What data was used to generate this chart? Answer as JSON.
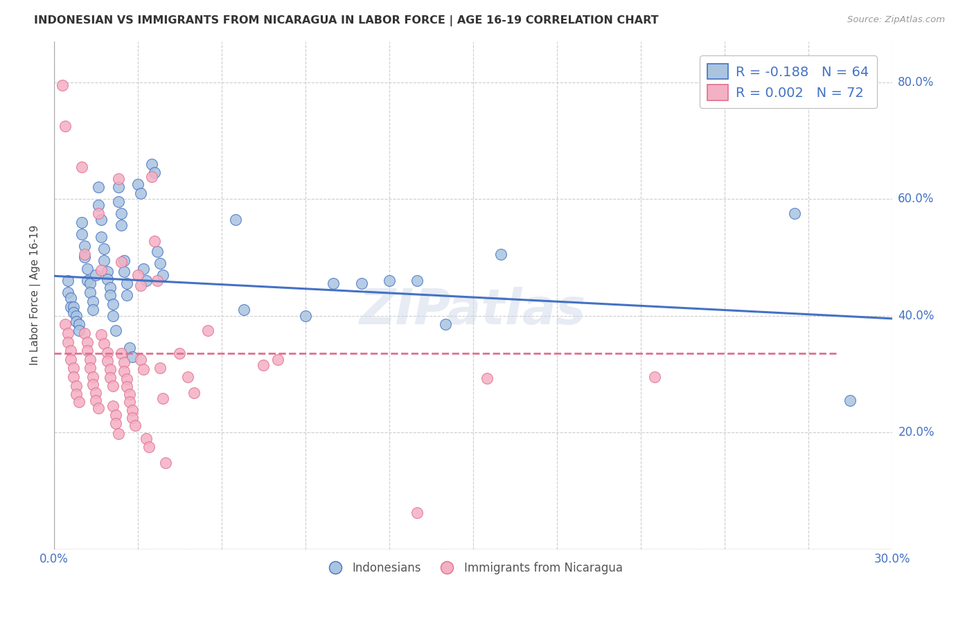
{
  "title": "INDONESIAN VS IMMIGRANTS FROM NICARAGUA IN LABOR FORCE | AGE 16-19 CORRELATION CHART",
  "source": "Source: ZipAtlas.com",
  "ylabel": "In Labor Force | Age 16-19",
  "xlim": [
    0.0,
    0.3
  ],
  "ylim": [
    0.0,
    0.87
  ],
  "xticks": [
    0.0,
    0.03,
    0.06,
    0.09,
    0.12,
    0.15,
    0.18,
    0.21,
    0.24,
    0.27,
    0.3
  ],
  "yticks": [
    0.0,
    0.2,
    0.4,
    0.6,
    0.8
  ],
  "blue_color": "#aac4e0",
  "pink_color": "#f4b0c4",
  "blue_edge_color": "#4472c4",
  "pink_edge_color": "#e07090",
  "blue_trend_x0": 0.0,
  "blue_trend_y0": 0.468,
  "blue_trend_x1": 0.3,
  "blue_trend_y1": 0.395,
  "pink_trend_x0": 0.0,
  "pink_trend_y0": 0.335,
  "pink_trend_x1": 0.28,
  "pink_trend_y1": 0.335,
  "blue_scatter": [
    [
      0.005,
      0.46
    ],
    [
      0.005,
      0.44
    ],
    [
      0.006,
      0.43
    ],
    [
      0.006,
      0.415
    ],
    [
      0.007,
      0.415
    ],
    [
      0.007,
      0.405
    ],
    [
      0.008,
      0.4
    ],
    [
      0.008,
      0.39
    ],
    [
      0.009,
      0.385
    ],
    [
      0.009,
      0.375
    ],
    [
      0.01,
      0.56
    ],
    [
      0.01,
      0.54
    ],
    [
      0.011,
      0.52
    ],
    [
      0.011,
      0.5
    ],
    [
      0.012,
      0.48
    ],
    [
      0.012,
      0.46
    ],
    [
      0.013,
      0.455
    ],
    [
      0.013,
      0.44
    ],
    [
      0.014,
      0.425
    ],
    [
      0.014,
      0.41
    ],
    [
      0.015,
      0.47
    ],
    [
      0.016,
      0.62
    ],
    [
      0.016,
      0.59
    ],
    [
      0.017,
      0.565
    ],
    [
      0.017,
      0.535
    ],
    [
      0.018,
      0.515
    ],
    [
      0.018,
      0.495
    ],
    [
      0.019,
      0.475
    ],
    [
      0.019,
      0.462
    ],
    [
      0.02,
      0.448
    ],
    [
      0.02,
      0.435
    ],
    [
      0.021,
      0.42
    ],
    [
      0.021,
      0.4
    ],
    [
      0.022,
      0.375
    ],
    [
      0.023,
      0.62
    ],
    [
      0.023,
      0.595
    ],
    [
      0.024,
      0.575
    ],
    [
      0.024,
      0.555
    ],
    [
      0.025,
      0.495
    ],
    [
      0.025,
      0.475
    ],
    [
      0.026,
      0.455
    ],
    [
      0.026,
      0.435
    ],
    [
      0.027,
      0.345
    ],
    [
      0.028,
      0.33
    ],
    [
      0.03,
      0.625
    ],
    [
      0.031,
      0.61
    ],
    [
      0.032,
      0.48
    ],
    [
      0.033,
      0.46
    ],
    [
      0.035,
      0.66
    ],
    [
      0.036,
      0.645
    ],
    [
      0.037,
      0.51
    ],
    [
      0.038,
      0.49
    ],
    [
      0.039,
      0.47
    ],
    [
      0.065,
      0.565
    ],
    [
      0.068,
      0.41
    ],
    [
      0.09,
      0.4
    ],
    [
      0.1,
      0.455
    ],
    [
      0.11,
      0.455
    ],
    [
      0.12,
      0.46
    ],
    [
      0.13,
      0.46
    ],
    [
      0.14,
      0.385
    ],
    [
      0.16,
      0.505
    ],
    [
      0.265,
      0.575
    ],
    [
      0.285,
      0.255
    ]
  ],
  "pink_scatter": [
    [
      0.003,
      0.795
    ],
    [
      0.004,
      0.725
    ],
    [
      0.004,
      0.385
    ],
    [
      0.005,
      0.37
    ],
    [
      0.005,
      0.355
    ],
    [
      0.006,
      0.34
    ],
    [
      0.006,
      0.325
    ],
    [
      0.007,
      0.31
    ],
    [
      0.007,
      0.295
    ],
    [
      0.008,
      0.28
    ],
    [
      0.008,
      0.265
    ],
    [
      0.009,
      0.252
    ],
    [
      0.01,
      0.655
    ],
    [
      0.011,
      0.505
    ],
    [
      0.011,
      0.37
    ],
    [
      0.012,
      0.355
    ],
    [
      0.012,
      0.34
    ],
    [
      0.013,
      0.325
    ],
    [
      0.013,
      0.31
    ],
    [
      0.014,
      0.295
    ],
    [
      0.014,
      0.282
    ],
    [
      0.015,
      0.268
    ],
    [
      0.015,
      0.255
    ],
    [
      0.016,
      0.242
    ],
    [
      0.016,
      0.575
    ],
    [
      0.017,
      0.478
    ],
    [
      0.017,
      0.368
    ],
    [
      0.018,
      0.352
    ],
    [
      0.019,
      0.337
    ],
    [
      0.019,
      0.322
    ],
    [
      0.02,
      0.308
    ],
    [
      0.02,
      0.294
    ],
    [
      0.021,
      0.28
    ],
    [
      0.021,
      0.245
    ],
    [
      0.022,
      0.23
    ],
    [
      0.022,
      0.215
    ],
    [
      0.023,
      0.198
    ],
    [
      0.023,
      0.635
    ],
    [
      0.024,
      0.492
    ],
    [
      0.024,
      0.335
    ],
    [
      0.025,
      0.32
    ],
    [
      0.025,
      0.305
    ],
    [
      0.026,
      0.292
    ],
    [
      0.026,
      0.278
    ],
    [
      0.027,
      0.265
    ],
    [
      0.027,
      0.252
    ],
    [
      0.028,
      0.238
    ],
    [
      0.028,
      0.225
    ],
    [
      0.029,
      0.212
    ],
    [
      0.03,
      0.47
    ],
    [
      0.031,
      0.452
    ],
    [
      0.031,
      0.325
    ],
    [
      0.032,
      0.308
    ],
    [
      0.033,
      0.19
    ],
    [
      0.034,
      0.175
    ],
    [
      0.035,
      0.638
    ],
    [
      0.036,
      0.528
    ],
    [
      0.037,
      0.46
    ],
    [
      0.038,
      0.31
    ],
    [
      0.039,
      0.258
    ],
    [
      0.04,
      0.148
    ],
    [
      0.045,
      0.335
    ],
    [
      0.048,
      0.295
    ],
    [
      0.05,
      0.268
    ],
    [
      0.055,
      0.375
    ],
    [
      0.075,
      0.315
    ],
    [
      0.08,
      0.325
    ],
    [
      0.13,
      0.063
    ],
    [
      0.155,
      0.293
    ],
    [
      0.215,
      0.295
    ]
  ],
  "legend_label_blue": "Indonesians",
  "legend_label_pink": "Immigrants from Nicaragua",
  "background_color": "#ffffff",
  "grid_color": "#cccccc",
  "watermark_text": "ZIPatlas",
  "watermark_color": "#d0d8e8"
}
